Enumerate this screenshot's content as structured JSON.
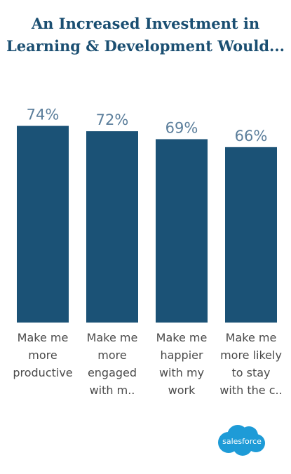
{
  "title": {
    "line1": "An Increased Investment in",
    "line2": "Learning & Development Would..."
  },
  "logo": {
    "text": "salesforce",
    "color": "#1e9bd7"
  },
  "chart_data": {
    "type": "bar",
    "title": "An Increased Investment in Learning & Development Would...",
    "categories": [
      [
        "Make me",
        "more",
        "productive"
      ],
      [
        "Make me",
        "more",
        "engaged",
        "with m.."
      ],
      [
        "Make me",
        "happier",
        "with my",
        "work"
      ],
      [
        "Make me",
        "more likely",
        "to stay",
        "with the c.."
      ]
    ],
    "values": [
      74,
      72,
      69,
      66
    ],
    "value_labels": [
      "74%",
      "72%",
      "69%",
      "66%"
    ],
    "unit": "%",
    "bar_color": "#1b5276",
    "ylim": [
      0,
      100
    ],
    "grid": false,
    "legend": "none"
  }
}
